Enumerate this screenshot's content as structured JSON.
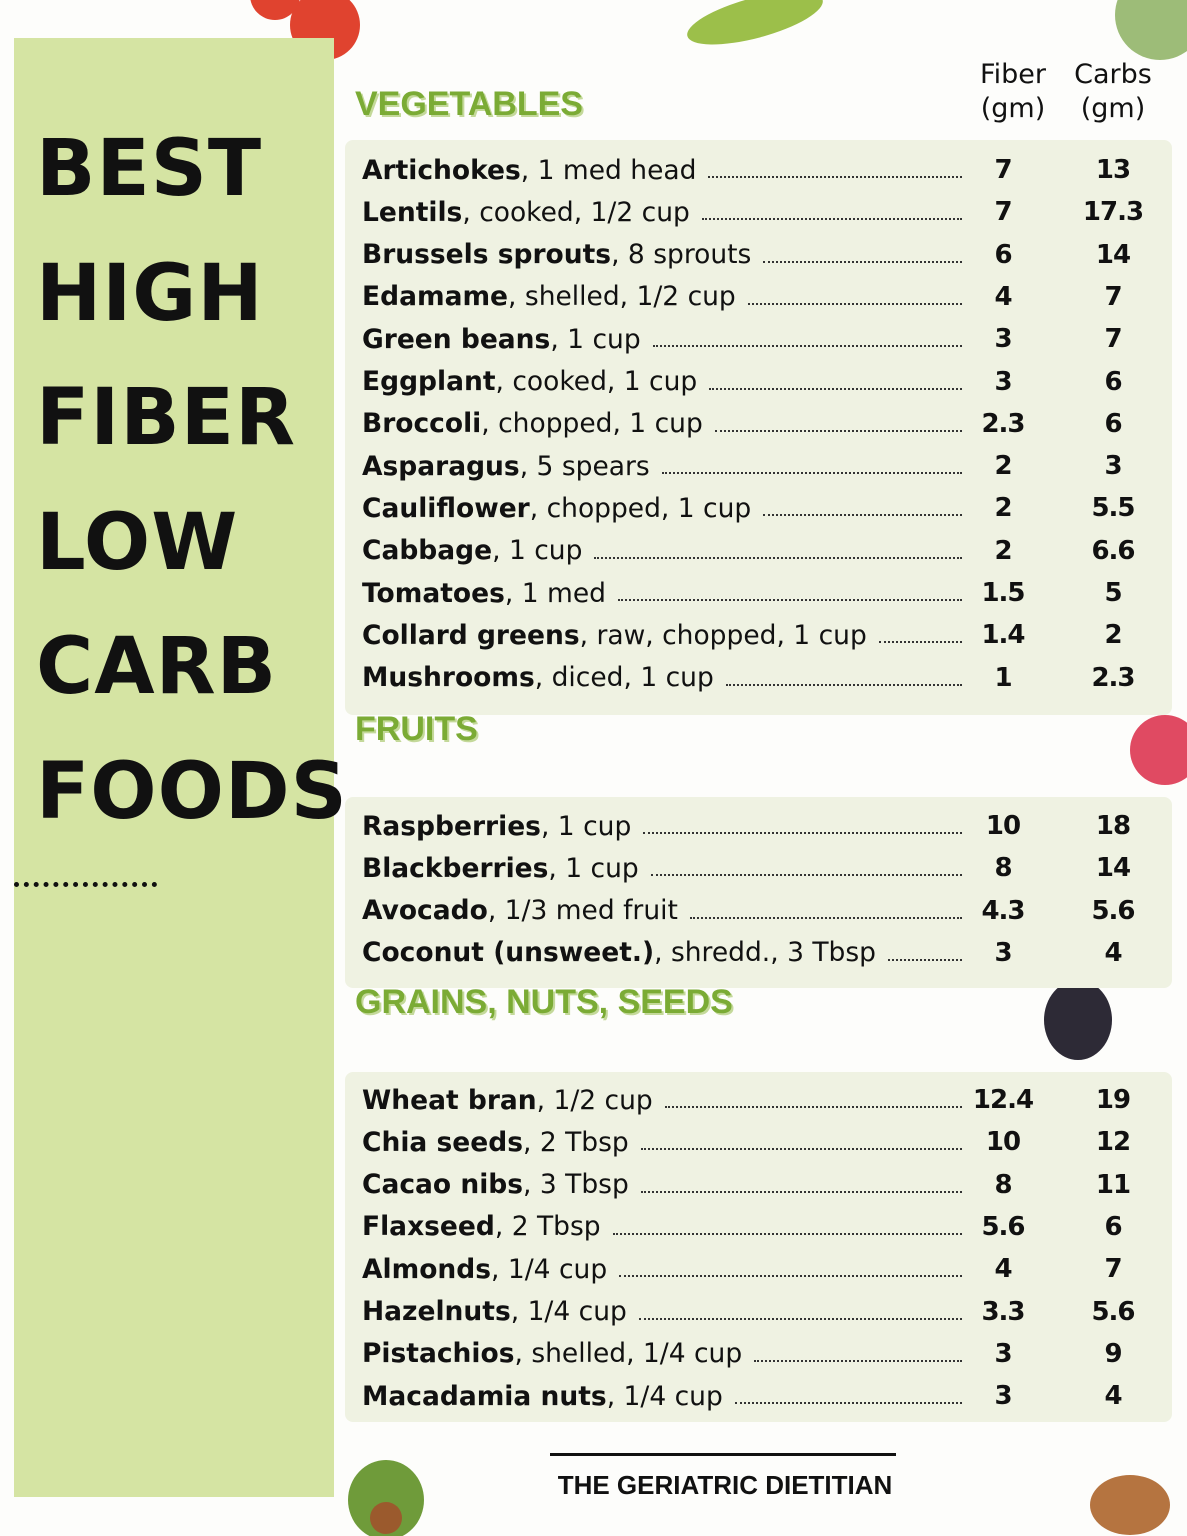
{
  "sidebar": {
    "title_lines": [
      "BEST",
      "HIGH",
      "FIBER",
      "LOW",
      "CARB",
      "FOODS"
    ]
  },
  "columns": [
    {
      "name": "Fiber",
      "unit": "(gm)"
    },
    {
      "name": "Carbs",
      "unit": "(gm)"
    }
  ],
  "sections": [
    {
      "title": "VEGETABLES",
      "items": [
        {
          "name": "Artichokes",
          "detail": ", 1 med head",
          "fiber": 7,
          "carbs": 13
        },
        {
          "name": "Lentils",
          "detail": ", cooked, 1/2 cup",
          "fiber": 7,
          "carbs": 17.3
        },
        {
          "name": "Brussels sprouts",
          "detail": ", 8 sprouts",
          "fiber": 6,
          "carbs": 14
        },
        {
          "name": "Edamame",
          "detail": ", shelled, 1/2 cup",
          "fiber": 4,
          "carbs": 7
        },
        {
          "name": "Green beans",
          "detail": ", 1 cup",
          "fiber": 3,
          "carbs": 7
        },
        {
          "name": "Eggplant",
          "detail": ", cooked, 1 cup",
          "fiber": 3,
          "carbs": 6
        },
        {
          "name": "Broccoli",
          "detail": ", chopped, 1 cup",
          "fiber": 2.3,
          "carbs": 6
        },
        {
          "name": "Asparagus",
          "detail": ", 5 spears",
          "fiber": 2,
          "carbs": 3
        },
        {
          "name": "Cauliflower",
          "detail": ", chopped, 1 cup",
          "fiber": 2,
          "carbs": 5.5
        },
        {
          "name": "Cabbage",
          "detail": ", 1 cup",
          "fiber": 2,
          "carbs": 6.6
        },
        {
          "name": "Tomatoes",
          "detail": ", 1 med",
          "fiber": 1.5,
          "carbs": 5
        },
        {
          "name": "Collard greens",
          "detail": ", raw, chopped, 1 cup",
          "fiber": 1.4,
          "carbs": 2
        },
        {
          "name": "Mushrooms",
          "detail": ", diced, 1 cup",
          "fiber": 1,
          "carbs": 2.3
        }
      ]
    },
    {
      "title": "FRUITS",
      "items": [
        {
          "name": "Raspberries",
          "detail": ", 1 cup",
          "fiber": 10,
          "carbs": 18
        },
        {
          "name": "Blackberries",
          "detail": ", 1 cup",
          "fiber": 8,
          "carbs": 14
        },
        {
          "name": "Avocado",
          "detail": ", 1/3 med fruit",
          "fiber": 4.3,
          "carbs": 5.6
        },
        {
          "name": "Coconut (unsweet.)",
          "detail": ", shredd., 3 Tbsp",
          "fiber": 3,
          "carbs": 4
        }
      ]
    },
    {
      "title": "GRAINS, NUTS, SEEDS",
      "items": [
        {
          "name": "Wheat bran",
          "detail": ", 1/2 cup",
          "fiber": 12.4,
          "carbs": 19
        },
        {
          "name": "Chia seeds",
          "detail": ", 2 Tbsp",
          "fiber": 10,
          "carbs": 12
        },
        {
          "name": "Cacao nibs",
          "detail": ", 3 Tbsp",
          "fiber": 8,
          "carbs": 11
        },
        {
          "name": "Flaxseed",
          "detail": ", 2 Tbsp",
          "fiber": 5.6,
          "carbs": 6
        },
        {
          "name": "Almonds",
          "detail": ", 1/4 cup",
          "fiber": 4,
          "carbs": 7
        },
        {
          "name": "Hazelnuts",
          "detail": ", 1/4 cup",
          "fiber": 3.3,
          "carbs": 5.6
        },
        {
          "name": "Pistachios",
          "detail": ", shelled, 1/4 cup",
          "fiber": 3,
          "carbs": 9
        },
        {
          "name": "Macadamia nuts",
          "detail": ", 1/4 cup",
          "fiber": 3,
          "carbs": 4
        }
      ]
    }
  ],
  "footer": "THE GERIATRIC DIETITIAN"
}
